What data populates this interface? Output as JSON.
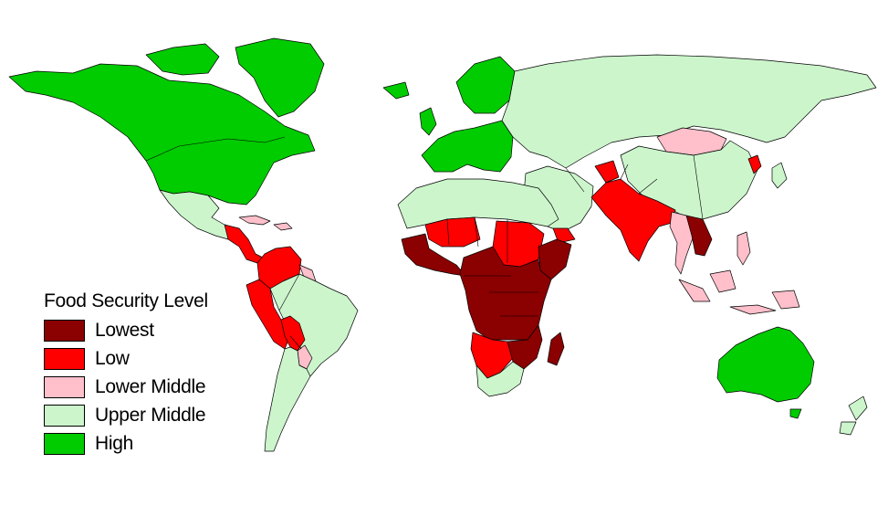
{
  "legend": {
    "title": "Food Security Level",
    "items": [
      {
        "label": "Lowest",
        "color": "#8b0000"
      },
      {
        "label": "Low",
        "color": "#ff0000"
      },
      {
        "label": "Lower Middle",
        "color": "#ffc0cb"
      },
      {
        "label": "Upper Middle",
        "color": "#ccf5cc"
      },
      {
        "label": "High",
        "color": "#00cc00"
      }
    ]
  },
  "regions": [
    {
      "name": "north-america",
      "level": "High"
    },
    {
      "name": "greenland",
      "level": "High"
    },
    {
      "name": "europe",
      "level": "High"
    },
    {
      "name": "mexico",
      "level": "Upper Middle"
    },
    {
      "name": "central-america",
      "level": "Low"
    },
    {
      "name": "caribbean",
      "level": "Lower Middle"
    },
    {
      "name": "colombia-venezuela",
      "level": "Low"
    },
    {
      "name": "ecuador-peru",
      "level": "Low"
    },
    {
      "name": "bolivia",
      "level": "Low"
    },
    {
      "name": "paraguay",
      "level": "Lower Middle"
    },
    {
      "name": "brazil",
      "level": "Upper Middle"
    },
    {
      "name": "southern-cone",
      "level": "Upper Middle"
    },
    {
      "name": "russia-central-asia",
      "level": "Upper Middle"
    },
    {
      "name": "mongolia",
      "level": "Lower Middle"
    },
    {
      "name": "china",
      "level": "Upper Middle"
    },
    {
      "name": "north-korea",
      "level": "Low"
    },
    {
      "name": "north-africa",
      "level": "Upper Middle"
    },
    {
      "name": "middle-east",
      "level": "Upper Middle"
    },
    {
      "name": "yemen",
      "level": "Low"
    },
    {
      "name": "afghanistan",
      "level": "Low"
    },
    {
      "name": "south-asia",
      "level": "Low"
    },
    {
      "name": "myanmar-thailand",
      "level": "Lower Middle"
    },
    {
      "name": "indochina",
      "level": "Lowest"
    },
    {
      "name": "philippines",
      "level": "Lower Middle"
    },
    {
      "name": "indonesia",
      "level": "Lower Middle"
    },
    {
      "name": "sahel-west",
      "level": "Low"
    },
    {
      "name": "west-africa",
      "level": "Lowest"
    },
    {
      "name": "sudan",
      "level": "Low"
    },
    {
      "name": "horn-of-africa",
      "level": "Lowest"
    },
    {
      "name": "central-africa",
      "level": "Lowest"
    },
    {
      "name": "angola-namibia",
      "level": "Low"
    },
    {
      "name": "zimbabwe-mozambique",
      "level": "Lowest"
    },
    {
      "name": "madagascar",
      "level": "Lowest"
    },
    {
      "name": "south-africa",
      "level": "Upper Middle"
    },
    {
      "name": "australia",
      "level": "High"
    },
    {
      "name": "new-zealand",
      "level": "Upper Middle"
    }
  ]
}
